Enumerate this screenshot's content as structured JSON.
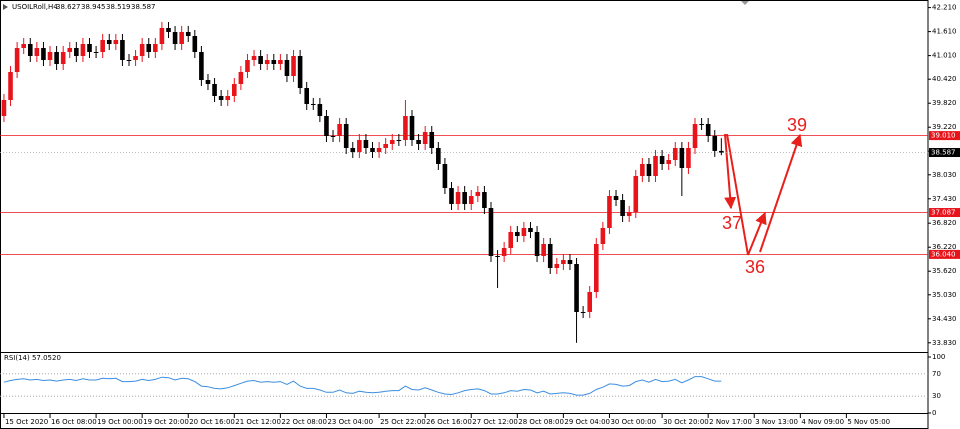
{
  "chart_data": [
    {
      "type": "candlestick",
      "title": "USOILRoll,H4",
      "open": [
        39.5,
        39.9,
        40.6,
        41.2,
        41.3,
        41.0,
        41.2,
        40.9,
        41.1,
        40.8,
        41.1,
        41.2,
        41.0,
        41.3,
        41.1,
        41.1,
        41.4,
        41.3,
        41.4,
        40.9,
        40.9,
        41.0,
        41.3,
        41.1,
        41.3,
        41.7,
        41.6,
        41.3,
        41.6,
        41.5,
        41.1,
        40.4,
        40.3,
        40.0,
        39.9,
        40.0,
        40.3,
        40.6,
        40.9,
        41.0,
        40.8,
        40.9,
        40.8,
        40.9,
        40.5,
        41.0,
        40.2,
        39.8,
        39.8,
        39.5,
        39.0,
        39.0,
        39.3,
        38.7,
        38.6,
        38.9,
        38.7,
        38.6,
        38.7,
        38.8,
        38.9,
        38.9,
        39.5,
        38.9,
        38.8,
        39.1,
        38.7,
        38.3,
        37.7,
        37.3,
        37.6,
        37.3,
        37.5,
        37.6,
        37.2,
        36.0,
        36.0,
        36.2,
        36.6,
        36.5,
        36.7,
        36.6,
        36.0,
        36.3,
        35.7,
        35.8,
        35.9,
        35.8,
        34.6,
        34.6,
        35.1,
        36.3,
        36.7,
        37.5,
        37.4,
        37.0,
        37.1,
        38.0,
        38.3,
        38.0,
        38.5,
        38.3,
        38.4,
        38.7,
        38.2,
        38.7,
        39.3,
        39.3,
        39.0,
        38.627
      ],
      "high": [
        40.05,
        40.75,
        41.35,
        41.45,
        41.45,
        41.35,
        41.35,
        41.25,
        41.25,
        41.25,
        41.35,
        41.35,
        41.45,
        41.45,
        41.25,
        41.55,
        41.55,
        41.55,
        41.55,
        41.05,
        41.15,
        41.45,
        41.45,
        41.45,
        41.85,
        41.85,
        41.75,
        41.75,
        41.75,
        41.65,
        41.25,
        40.55,
        40.45,
        40.15,
        40.15,
        40.45,
        40.75,
        41.05,
        41.15,
        41.15,
        41.05,
        41.05,
        41.05,
        41.05,
        41.15,
        41.15,
        40.35,
        39.95,
        39.95,
        39.65,
        39.15,
        39.45,
        39.45,
        38.85,
        39.05,
        39.05,
        38.85,
        38.85,
        38.95,
        39.05,
        39.05,
        39.9,
        39.65,
        39.05,
        39.25,
        39.25,
        38.85,
        38.45,
        37.85,
        37.75,
        37.75,
        37.65,
        37.75,
        37.75,
        37.35,
        36.15,
        36.35,
        36.75,
        36.75,
        36.85,
        36.85,
        36.75,
        36.45,
        36.45,
        35.95,
        36.05,
        36.05,
        35.95,
        34.75,
        35.25,
        36.45,
        36.85,
        37.65,
        37.65,
        37.55,
        37.25,
        38.15,
        38.45,
        38.45,
        38.65,
        38.65,
        38.55,
        38.85,
        38.85,
        38.85,
        39.45,
        39.45,
        39.45,
        39.15,
        38.945
      ],
      "low": [
        39.35,
        39.75,
        40.45,
        41.05,
        40.85,
        40.85,
        40.75,
        40.75,
        40.65,
        40.65,
        40.95,
        40.85,
        40.85,
        40.95,
        40.95,
        40.95,
        41.15,
        41.15,
        40.75,
        40.75,
        40.75,
        40.85,
        40.95,
        40.95,
        41.15,
        41.45,
        41.15,
        41.15,
        41.35,
        40.95,
        40.25,
        40.15,
        39.85,
        39.75,
        39.75,
        39.85,
        40.15,
        40.45,
        40.75,
        40.65,
        40.65,
        40.65,
        40.65,
        40.35,
        40.35,
        40.05,
        39.65,
        39.65,
        39.35,
        38.85,
        38.85,
        38.85,
        38.55,
        38.45,
        38.45,
        38.55,
        38.45,
        38.45,
        38.55,
        38.65,
        38.75,
        38.75,
        38.75,
        38.65,
        38.65,
        38.55,
        38.15,
        37.55,
        37.15,
        37.15,
        37.15,
        37.15,
        37.35,
        37.05,
        35.85,
        35.2,
        35.85,
        36.05,
        36.35,
        36.35,
        36.45,
        35.85,
        35.85,
        35.55,
        35.55,
        35.65,
        35.65,
        33.83,
        34.45,
        34.45,
        34.95,
        36.15,
        36.55,
        37.25,
        36.85,
        36.85,
        36.95,
        37.85,
        37.85,
        37.85,
        38.15,
        38.15,
        38.25,
        37.5,
        38.05,
        38.55,
        39.15,
        38.85,
        38.477,
        38.519
      ],
      "close": [
        39.9,
        40.6,
        41.2,
        41.3,
        41.0,
        41.2,
        40.9,
        41.1,
        40.8,
        41.1,
        41.2,
        41.0,
        41.3,
        41.1,
        41.1,
        41.4,
        41.3,
        41.4,
        40.9,
        40.9,
        41.0,
        41.3,
        41.1,
        41.3,
        41.7,
        41.6,
        41.3,
        41.6,
        41.5,
        41.1,
        40.4,
        40.3,
        40.0,
        39.9,
        40.0,
        40.3,
        40.6,
        40.9,
        41.0,
        40.8,
        40.9,
        40.8,
        40.9,
        40.5,
        41.0,
        40.2,
        39.8,
        39.8,
        39.5,
        39.0,
        39.0,
        39.3,
        38.7,
        38.6,
        38.9,
        38.7,
        38.6,
        38.7,
        38.8,
        38.9,
        38.9,
        39.5,
        38.9,
        38.8,
        39.1,
        38.7,
        38.3,
        37.7,
        37.3,
        37.6,
        37.3,
        37.5,
        37.6,
        37.2,
        36.0,
        36.0,
        36.2,
        36.6,
        36.5,
        36.7,
        36.6,
        36.0,
        36.3,
        35.7,
        35.8,
        35.9,
        35.8,
        34.6,
        34.6,
        35.1,
        36.3,
        36.7,
        37.5,
        37.4,
        37.0,
        37.1,
        38.0,
        38.3,
        38.0,
        38.5,
        38.3,
        38.4,
        38.7,
        38.2,
        38.7,
        39.3,
        39.3,
        39.0,
        38.627,
        38.587
      ],
      "up_color": "#e8141c",
      "down_color": "#000000",
      "ylim": [
        33.6,
        42.4
      ],
      "yticks": [
        {
          "value": 42.21,
          "label": "42.210"
        },
        {
          "value": 41.61,
          "label": "41.610"
        },
        {
          "value": 41.01,
          "label": "41.010"
        },
        {
          "value": 40.42,
          "label": "40.420"
        },
        {
          "value": 39.82,
          "label": "39.820"
        },
        {
          "value": 39.22,
          "label": "39.220"
        },
        {
          "value": 38.62,
          "label": "38.620"
        },
        {
          "value": 38.03,
          "label": "38.030"
        },
        {
          "value": 37.43,
          "label": "37.430"
        },
        {
          "value": 36.82,
          "label": "36.820"
        },
        {
          "value": 36.22,
          "label": "36.220"
        },
        {
          "value": 35.62,
          "label": "35.620"
        },
        {
          "value": 35.03,
          "label": "35.030"
        },
        {
          "value": 34.43,
          "label": "34.430"
        },
        {
          "value": 33.83,
          "label": "33.830"
        }
      ],
      "xlim": [
        -0.6,
        140.4
      ],
      "xticks": [
        {
          "value": 0,
          "label": "15 Oct 2020"
        },
        {
          "value": 7,
          "label": "16 Oct 08:00"
        },
        {
          "value": 14,
          "label": "19 Oct 00:00"
        },
        {
          "value": 21,
          "label": "19 Oct 20:00"
        },
        {
          "value": 28,
          "label": "20 Oct 16:00"
        },
        {
          "value": 35,
          "label": "21 Oct 12:00"
        },
        {
          "value": 42,
          "label": "22 Oct 08:00"
        },
        {
          "value": 49,
          "label": "23 Oct 04:00"
        },
        {
          "value": 57,
          "label": "25 Oct 22:00"
        },
        {
          "value": 64,
          "label": "26 Oct 16:00"
        },
        {
          "value": 71,
          "label": "27 Oct 12:00"
        },
        {
          "value": 78,
          "label": "28 Oct 08:00"
        },
        {
          "value": 85,
          "label": "29 Oct 04:00"
        },
        {
          "value": 92,
          "label": "30 Oct 00:00"
        },
        {
          "value": 100,
          "label": "30 Oct 20:00"
        },
        {
          "value": 107,
          "label": "2 Nov 17:00"
        },
        {
          "value": 114,
          "label": "3 Nov 13:00"
        },
        {
          "value": 121,
          "label": "4 Nov 09:00"
        },
        {
          "value": 128,
          "label": "5 Nov 05:00"
        }
      ],
      "levels": [
        {
          "value": 39.01,
          "label": "39.010",
          "color": "#e8141c"
        },
        {
          "value": 37.087,
          "label": "37.087",
          "color": "#e8141c"
        },
        {
          "value": 36.04,
          "label": "36.040",
          "color": "#e8141c"
        }
      ],
      "last_price": {
        "value": 38.587,
        "label": "38.587",
        "color": "#000000"
      },
      "annotations": [
        "37",
        "36",
        "39"
      ],
      "annotation_color": "#e8201c"
    },
    {
      "type": "line",
      "title": "RSI(14) 57.0520",
      "color": "#3c8ee0",
      "values": [
        55,
        58,
        60,
        61,
        59,
        60,
        58,
        59,
        57,
        59,
        60,
        58,
        61,
        59,
        59,
        62,
        61,
        62,
        56,
        56,
        57,
        60,
        58,
        60,
        64,
        63,
        59,
        62,
        61,
        56,
        48,
        47,
        44,
        43,
        45,
        49,
        53,
        57,
        58,
        55,
        56,
        55,
        56,
        51,
        57,
        48,
        44,
        44,
        41,
        37,
        37,
        41,
        36,
        35,
        39,
        37,
        36,
        37,
        39,
        40,
        40,
        48,
        42,
        41,
        45,
        41,
        37,
        34,
        33,
        36,
        40,
        42,
        43,
        40,
        34,
        34,
        36,
        40,
        39,
        42,
        41,
        36,
        39,
        34,
        35,
        36,
        35,
        32,
        32,
        35,
        42,
        46,
        52,
        51,
        48,
        49,
        56,
        59,
        55,
        60,
        56,
        57,
        60,
        54,
        59,
        65,
        65,
        61,
        57,
        57.052
      ],
      "ylim": [
        0,
        100
      ],
      "yticks": [
        100,
        70,
        30,
        0
      ],
      "grid": true
    }
  ]
}
